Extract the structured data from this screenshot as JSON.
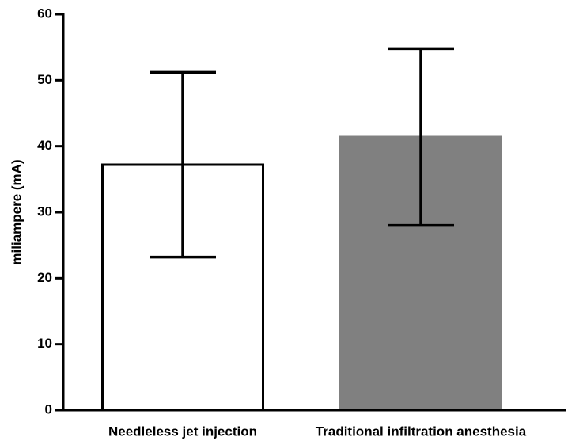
{
  "chart_data": {
    "type": "bar",
    "y_label": "miliampere (mA)",
    "categories": [
      "Needleless jet injection",
      "Traditional infiltration anesthesia"
    ],
    "values": [
      37.2,
      41.4
    ],
    "errors": [
      14,
      13.4
    ],
    "colors": [
      "#ffffff",
      "#808080"
    ],
    "edgecolors": [
      "#000000",
      "#808080"
    ],
    "ylim": [
      0,
      60
    ],
    "yticks": [
      0,
      10,
      20,
      30,
      40,
      50,
      60
    ]
  }
}
